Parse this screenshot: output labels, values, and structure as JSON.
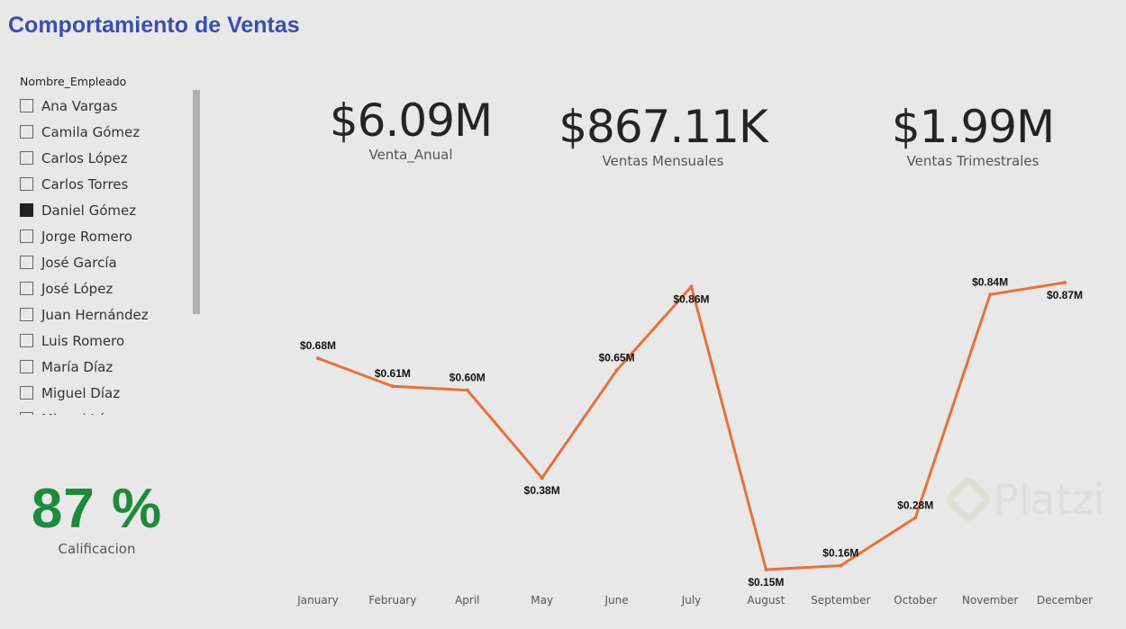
{
  "title": "Comportamiento de Ventas",
  "slicer": {
    "header": "Nombre_Empleado",
    "items": [
      {
        "label": "Ana Vargas",
        "checked": false
      },
      {
        "label": "Camila Gómez",
        "checked": false
      },
      {
        "label": "Carlos López",
        "checked": false
      },
      {
        "label": "Carlos Torres",
        "checked": false
      },
      {
        "label": "Daniel Gómez",
        "checked": true
      },
      {
        "label": "Jorge Romero",
        "checked": false
      },
      {
        "label": "José García",
        "checked": false
      },
      {
        "label": "José López",
        "checked": false
      },
      {
        "label": "Juan Hernández",
        "checked": false
      },
      {
        "label": "Luis Romero",
        "checked": false
      },
      {
        "label": "María Díaz",
        "checked": false
      },
      {
        "label": "Miguel Díaz",
        "checked": false
      },
      {
        "label": "Miguel López",
        "checked": false
      }
    ]
  },
  "kpis": [
    {
      "value": "$6.09M",
      "label": "Venta_Anual"
    },
    {
      "value": "$867.11K",
      "label": "Ventas Mensuales"
    },
    {
      "value": "$1.99M",
      "label": "Ventas Trimestrales"
    }
  ],
  "score": {
    "value": "87 %",
    "label": "Calificacion"
  },
  "watermark": "Platzi",
  "chart_data": {
    "type": "line",
    "color": "#e8703a",
    "categories": [
      "January",
      "February",
      "April",
      "May",
      "June",
      "July",
      "August",
      "September",
      "October",
      "November",
      "December"
    ],
    "values": [
      0.68,
      0.61,
      0.6,
      0.38,
      0.65,
      0.86,
      0.15,
      0.16,
      0.28,
      0.84,
      0.87
    ],
    "labels": [
      "$0.68M",
      "$0.61M",
      "$0.60M",
      "$0.38M",
      "$0.65M",
      "$0.86M",
      "$0.15M",
      "$0.16M",
      "$0.28M",
      "$0.84M",
      "$0.87M"
    ],
    "unit": "M"
  }
}
